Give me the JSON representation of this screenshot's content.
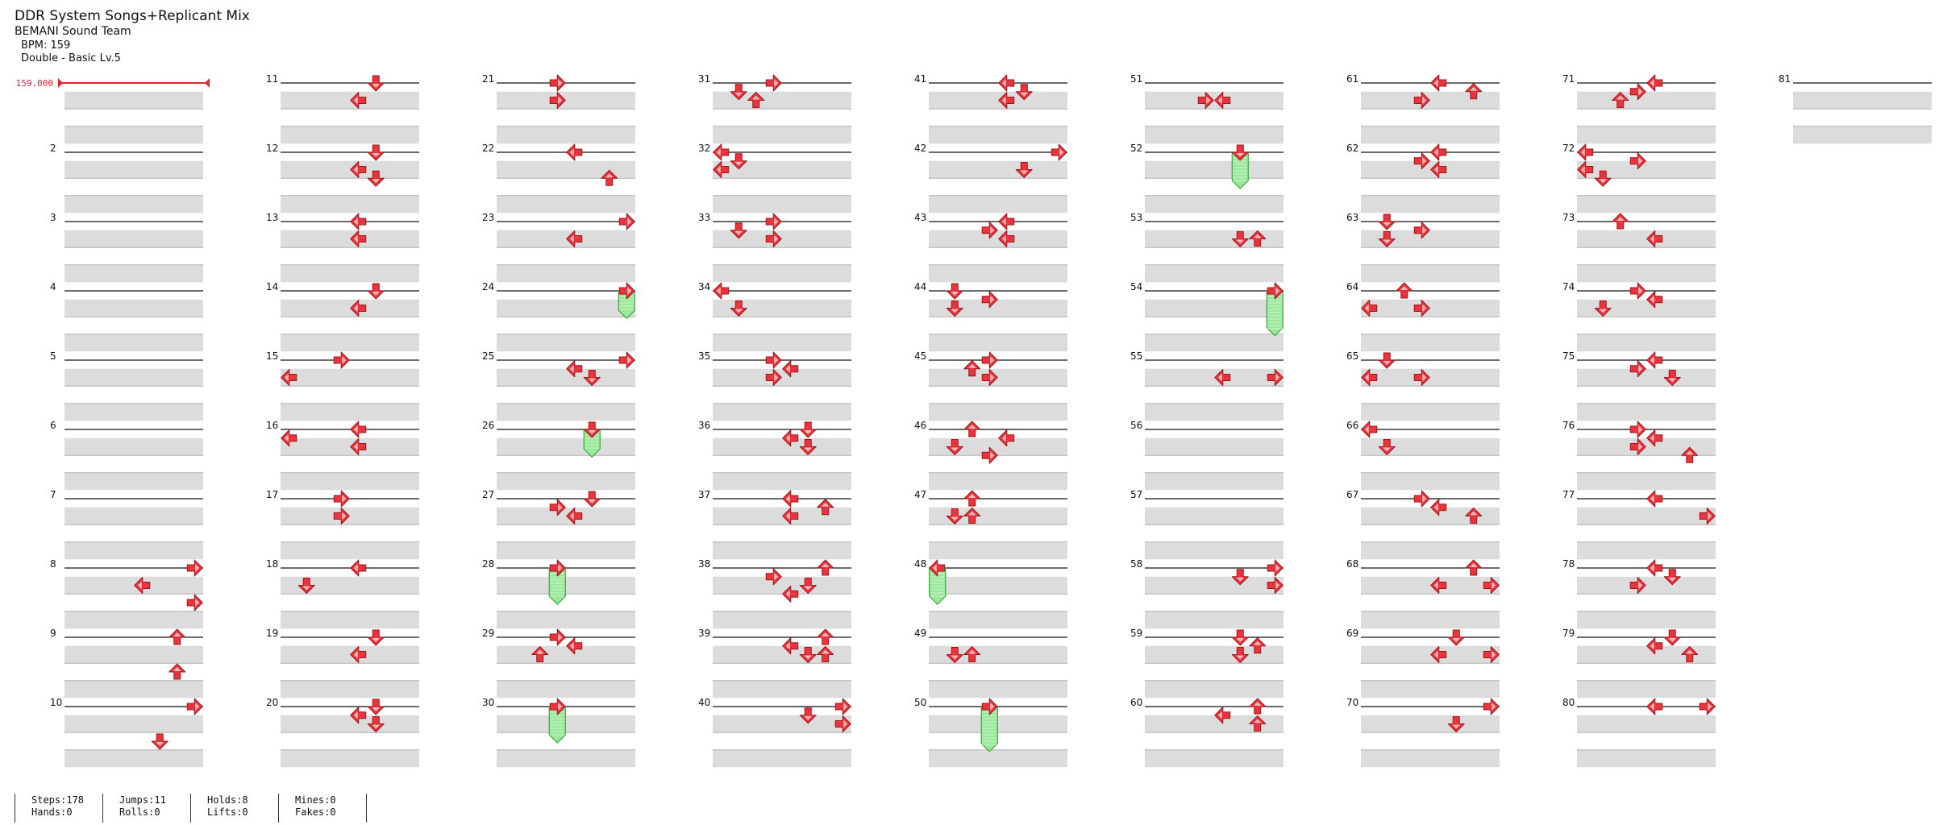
{
  "song": {
    "title": "DDR System Songs+Replicant Mix",
    "artist": "BEMANI Sound Team",
    "bpm_label": "BPM: 159",
    "difficulty_label": "Double - Basic  Lv.5"
  },
  "bpm_marker": {
    "value": "159.000",
    "color": "#e0262e"
  },
  "colors": {
    "arrow": "#e8343c",
    "hold_fill": "#9be89b",
    "hold_stroke": "#3aa83a",
    "lane_shade": "#dcdcdc"
  },
  "measure_labels": [
    "",
    "2",
    "3",
    "4",
    "5",
    "6",
    "7",
    "8",
    "9",
    "10",
    "11",
    "12",
    "13",
    "14",
    "15",
    "16",
    "17",
    "18",
    "19",
    "20",
    "21",
    "22",
    "23",
    "24",
    "25",
    "26",
    "27",
    "28",
    "29",
    "30",
    "31",
    "32",
    "33",
    "34",
    "35",
    "36",
    "37",
    "38",
    "39",
    "40",
    "41",
    "42",
    "43",
    "44",
    "45",
    "46",
    "47",
    "48",
    "49",
    "50",
    "51",
    "52",
    "53",
    "54",
    "55",
    "56",
    "57",
    "58",
    "59",
    "60",
    "61",
    "62",
    "63",
    "64",
    "65",
    "66",
    "67",
    "68",
    "69",
    "70",
    "71",
    "72",
    "73",
    "74",
    "75",
    "76",
    "77",
    "78",
    "79",
    "80",
    "81"
  ],
  "chart_notes": {
    "lanes": "0=Left 1=Down 2=Up 3=Right (P1), 4=Left 5=Down 6=Up 7=Right (P2); beat 0-3.5 within measure",
    "notes": [
      [
        8,
        0,
        7
      ],
      [
        8,
        1,
        4
      ],
      [
        8,
        2,
        7
      ],
      [
        9,
        0,
        6
      ],
      [
        9,
        2,
        6
      ],
      [
        10,
        0,
        7
      ],
      [
        10,
        2,
        5
      ],
      [
        11,
        0,
        5
      ],
      [
        11,
        1,
        4
      ],
      [
        12,
        0,
        5
      ],
      [
        12,
        1,
        4
      ],
      [
        12,
        1.5,
        5
      ],
      [
        13,
        0,
        4
      ],
      [
        13,
        1,
        4
      ],
      [
        14,
        0,
        5
      ],
      [
        14,
        1,
        4
      ],
      [
        15,
        0,
        3
      ],
      [
        15,
        1,
        0
      ],
      [
        16,
        0,
        4
      ],
      [
        16,
        0.5,
        0
      ],
      [
        16,
        1,
        4
      ],
      [
        17,
        0,
        3
      ],
      [
        17,
        1,
        3
      ],
      [
        18,
        0,
        4
      ],
      [
        18,
        1,
        1
      ],
      [
        19,
        0,
        5
      ],
      [
        19,
        1,
        4
      ],
      [
        20,
        0,
        5
      ],
      [
        20,
        0.5,
        4
      ],
      [
        20,
        1,
        5
      ],
      [
        21,
        0,
        3
      ],
      [
        21,
        1,
        3
      ],
      [
        22,
        0,
        4
      ],
      [
        22,
        1.5,
        6
      ],
      [
        23,
        0,
        7
      ],
      [
        23,
        1,
        4
      ],
      [
        25,
        0,
        7
      ],
      [
        25,
        0.5,
        4
      ],
      [
        25,
        1,
        5
      ],
      [
        27,
        0,
        5
      ],
      [
        27,
        0.5,
        3
      ],
      [
        27,
        1,
        4
      ],
      [
        29,
        0,
        3
      ],
      [
        29,
        0.5,
        4
      ],
      [
        29,
        1,
        2
      ],
      [
        31,
        0,
        3
      ],
      [
        31,
        0.5,
        1
      ],
      [
        31,
        1,
        2
      ],
      [
        32,
        0,
        0
      ],
      [
        32,
        0.5,
        1
      ],
      [
        32,
        1,
        0
      ],
      [
        33,
        0,
        3
      ],
      [
        33,
        0.5,
        1
      ],
      [
        33,
        1,
        3
      ],
      [
        34,
        0,
        0
      ],
      [
        34,
        1,
        1
      ],
      [
        35,
        0,
        3
      ],
      [
        35,
        0.5,
        4
      ],
      [
        35,
        1,
        3
      ],
      [
        36,
        0,
        5
      ],
      [
        36,
        0.5,
        4
      ],
      [
        36,
        1,
        5
      ],
      [
        37,
        0,
        4
      ],
      [
        37,
        0.5,
        6
      ],
      [
        37,
        1,
        4
      ],
      [
        38,
        0,
        6
      ],
      [
        38,
        0.5,
        3
      ],
      [
        38,
        1,
        5
      ],
      [
        38,
        1.5,
        4
      ],
      [
        39,
        0,
        6
      ],
      [
        39,
        0.5,
        4
      ],
      [
        39,
        1,
        5
      ],
      [
        39,
        1,
        6
      ],
      [
        40,
        0,
        7
      ],
      [
        40,
        0.5,
        5
      ],
      [
        40,
        1,
        7
      ],
      [
        41,
        0,
        4
      ],
      [
        41,
        0.5,
        5
      ],
      [
        41,
        1,
        4
      ],
      [
        42,
        0,
        7
      ],
      [
        42,
        1,
        5
      ],
      [
        43,
        0,
        4
      ],
      [
        43,
        0.5,
        3
      ],
      [
        43,
        1,
        4
      ],
      [
        44,
        0,
        1
      ],
      [
        44,
        0.5,
        3
      ],
      [
        44,
        1,
        1
      ],
      [
        45,
        0,
        3
      ],
      [
        45,
        0.5,
        2
      ],
      [
        45,
        1,
        3
      ],
      [
        46,
        0,
        2
      ],
      [
        46,
        0.5,
        4
      ],
      [
        46,
        1,
        1
      ],
      [
        46,
        1.5,
        3
      ],
      [
        47,
        0,
        2
      ],
      [
        47,
        1,
        1
      ],
      [
        47,
        1,
        2
      ],
      [
        49,
        1,
        1
      ],
      [
        49,
        1,
        2
      ],
      [
        51,
        1,
        3
      ],
      [
        51,
        1,
        4
      ],
      [
        53,
        1,
        5
      ],
      [
        53,
        1,
        6
      ],
      [
        55,
        1,
        4
      ],
      [
        55,
        1,
        7
      ],
      [
        58,
        0,
        7
      ],
      [
        58,
        0.5,
        5
      ],
      [
        58,
        1,
        7
      ],
      [
        59,
        0,
        5
      ],
      [
        59,
        0.5,
        6
      ],
      [
        59,
        1,
        5
      ],
      [
        60,
        0,
        6
      ],
      [
        60,
        0.5,
        4
      ],
      [
        60,
        1,
        6
      ],
      [
        61,
        0,
        4
      ],
      [
        61,
        0.5,
        6
      ],
      [
        61,
        1,
        3
      ],
      [
        62,
        0,
        4
      ],
      [
        62,
        0.5,
        3
      ],
      [
        62,
        1,
        4
      ],
      [
        63,
        0,
        1
      ],
      [
        63,
        0.5,
        3
      ],
      [
        63,
        1,
        1
      ],
      [
        64,
        0,
        2
      ],
      [
        64,
        1,
        0
      ],
      [
        64,
        1,
        3
      ],
      [
        65,
        0,
        1
      ],
      [
        65,
        1,
        0
      ],
      [
        65,
        1,
        3
      ],
      [
        66,
        0,
        0
      ],
      [
        66,
        1,
        1
      ],
      [
        67,
        0,
        3
      ],
      [
        67,
        0.5,
        4
      ],
      [
        67,
        1,
        6
      ],
      [
        68,
        0,
        6
      ],
      [
        68,
        1,
        4
      ],
      [
        68,
        1,
        7
      ],
      [
        69,
        0,
        5
      ],
      [
        69,
        1,
        4
      ],
      [
        69,
        1,
        7
      ],
      [
        70,
        0,
        7
      ],
      [
        70,
        1,
        5
      ],
      [
        71,
        0,
        4
      ],
      [
        71,
        0.5,
        3
      ],
      [
        71,
        1,
        2
      ],
      [
        72,
        0,
        0
      ],
      [
        72,
        0.5,
        3
      ],
      [
        72,
        1,
        0
      ],
      [
        72,
        1.5,
        1
      ],
      [
        73,
        0,
        2
      ],
      [
        73,
        1,
        4
      ],
      [
        74,
        0,
        3
      ],
      [
        74,
        0.5,
        4
      ],
      [
        74,
        1,
        1
      ],
      [
        75,
        0,
        4
      ],
      [
        75,
        0.5,
        3
      ],
      [
        75,
        1,
        5
      ],
      [
        76,
        0,
        3
      ],
      [
        76,
        0.5,
        4
      ],
      [
        76,
        1,
        3
      ],
      [
        76,
        1.5,
        6
      ],
      [
        77,
        0,
        4
      ],
      [
        77,
        1,
        7
      ],
      [
        78,
        0,
        4
      ],
      [
        78,
        0.5,
        5
      ],
      [
        78,
        1,
        3
      ],
      [
        79,
        0,
        5
      ],
      [
        79,
        0.5,
        4
      ],
      [
        79,
        1,
        6
      ],
      [
        80,
        0,
        4
      ],
      [
        80,
        0,
        7
      ]
    ],
    "holds": [
      [
        24,
        0,
        7,
        1.5
      ],
      [
        26,
        0,
        5,
        1.5
      ],
      [
        28,
        0,
        3,
        2
      ],
      [
        30,
        0,
        3,
        2
      ],
      [
        48,
        0,
        0,
        2
      ],
      [
        50,
        0,
        3,
        2.5
      ],
      [
        52,
        0,
        5,
        2
      ],
      [
        54,
        0,
        7,
        2.5
      ]
    ]
  },
  "stats": [
    {
      "a": "Steps:178",
      "b": "Hands:0"
    },
    {
      "a": "Jumps:11",
      "b": "Rolls:0"
    },
    {
      "a": "Holds:8",
      "b": "Lifts:0"
    },
    {
      "a": "Mines:0",
      "b": "Fakes:0"
    }
  ]
}
